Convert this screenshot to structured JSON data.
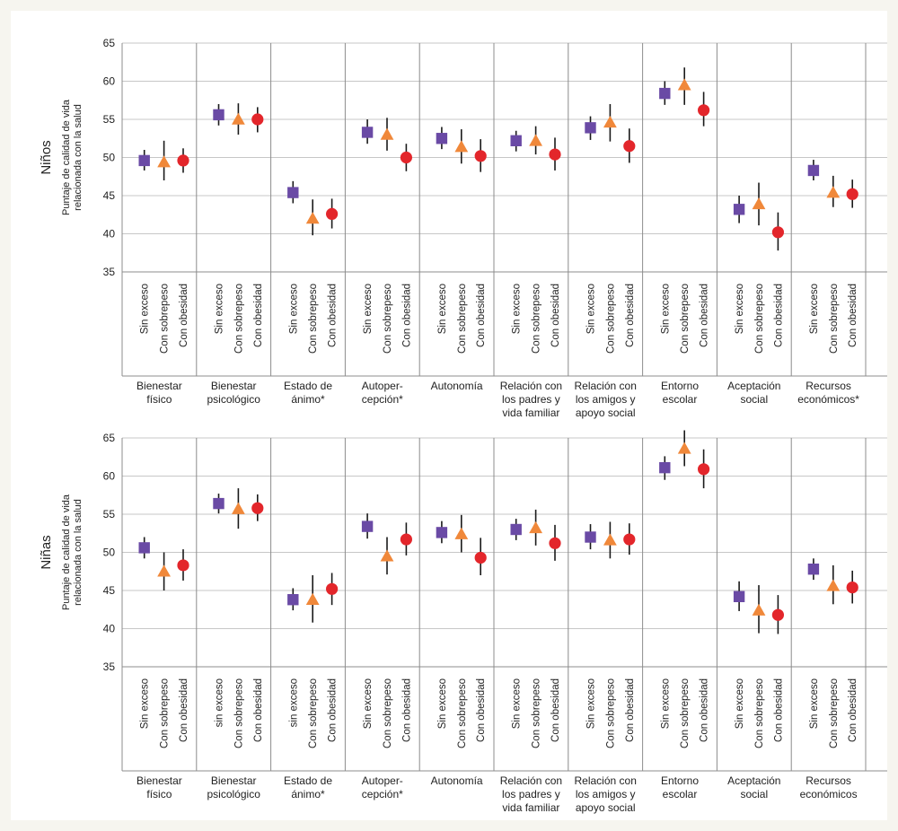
{
  "colors": {
    "sin_exceso": "#6a4aa5",
    "con_sobrepeso": "#f0883a",
    "con_obesidad": "#e3262b"
  },
  "chart_data": [
    {
      "type": "scatter",
      "title": "Niños",
      "ylabel": [
        "Puntaje de calidad de vida",
        "relacionada con la salud"
      ],
      "ylim": [
        35,
        65
      ],
      "yticks": [
        35,
        40,
        45,
        50,
        55,
        60,
        65
      ],
      "grid": true,
      "categories": [
        "Sin exceso",
        "Con sobrepeso",
        "Con obesidad"
      ],
      "groups": [
        {
          "label": [
            "Bienestar",
            "físico"
          ],
          "cats": [
            "Sin exceso",
            "Con sobrepeso",
            "Con obesidad"
          ],
          "values": [
            49.6,
            49.4,
            49.6
          ],
          "low": [
            48.3,
            47.0,
            48.0
          ],
          "high": [
            51.0,
            52.2,
            51.2
          ]
        },
        {
          "label": [
            "Bienestar",
            "psicológico"
          ],
          "cats": [
            "Sin exceso",
            "Con sobrepeso",
            "Con obesidad"
          ],
          "values": [
            55.6,
            55.0,
            55.0
          ],
          "low": [
            54.2,
            53.0,
            53.3
          ],
          "high": [
            57.0,
            57.1,
            56.6
          ]
        },
        {
          "label": [
            "Estado de",
            "ánimo*"
          ],
          "cats": [
            "Sin exceso",
            "Con sobrepeso",
            "Con obesidad"
          ],
          "values": [
            45.4,
            42.0,
            42.6
          ],
          "low": [
            44.0,
            39.8,
            40.7
          ],
          "high": [
            46.9,
            44.5,
            44.6
          ]
        },
        {
          "label": [
            "Autoper-",
            "cepción*"
          ],
          "cats": [
            "Sin exceso",
            "Con sobrepeso",
            "Con obesidad"
          ],
          "values": [
            53.3,
            53.0,
            50.0
          ],
          "low": [
            51.8,
            50.9,
            48.2
          ],
          "high": [
            55.0,
            55.2,
            51.8
          ]
        },
        {
          "label": [
            "Autonomía"
          ],
          "cats": [
            "Sin exceso",
            "Con sobrepeso",
            "Con obesidad"
          ],
          "values": [
            52.5,
            51.4,
            50.2
          ],
          "low": [
            51.1,
            49.2,
            48.1
          ],
          "high": [
            54.0,
            53.7,
            52.4
          ]
        },
        {
          "label": [
            "Relación con",
            "los padres y",
            "vida familiar"
          ],
          "cats": [
            "Sin exceso",
            "Con sobrepeso",
            "Con obesidad"
          ],
          "values": [
            52.2,
            52.2,
            50.4
          ],
          "low": [
            50.8,
            50.4,
            48.3
          ],
          "high": [
            53.5,
            54.1,
            52.6
          ]
        },
        {
          "label": [
            "Relación con",
            "los amigos y",
            "apoyo social"
          ],
          "cats": [
            "Sin exceso",
            "Con sobrepeso",
            "Con obesidad"
          ],
          "values": [
            53.9,
            54.6,
            51.5
          ],
          "low": [
            52.3,
            52.1,
            49.3
          ],
          "high": [
            55.4,
            57.0,
            53.8
          ]
        },
        {
          "label": [
            "Entorno",
            "escolar"
          ],
          "cats": [
            "Sin exceso",
            "Con sobrepeso",
            "Con obesidad"
          ],
          "values": [
            58.4,
            59.5,
            56.2
          ],
          "low": [
            56.9,
            56.9,
            54.1
          ],
          "high": [
            60.0,
            61.8,
            58.6
          ]
        },
        {
          "label": [
            "Aceptación",
            "social"
          ],
          "cats": [
            "Sin exceso",
            "Con sobrepeso",
            "Con obesidad"
          ],
          "values": [
            43.2,
            43.9,
            40.2
          ],
          "low": [
            41.4,
            41.1,
            37.8
          ],
          "high": [
            45.0,
            46.7,
            42.8
          ]
        },
        {
          "label": [
            "Recursos",
            "económicos*"
          ],
          "cats": [
            "Sin exceso",
            "Con sobrepeso",
            "Con obesidad"
          ],
          "values": [
            48.3,
            45.4,
            45.2
          ],
          "low": [
            47.0,
            43.5,
            43.4
          ],
          "high": [
            49.7,
            47.6,
            47.1
          ]
        }
      ]
    },
    {
      "type": "scatter",
      "title": "Niñas",
      "ylabel": [
        "Puntaje de calidad de vida",
        "relacionada con la salud"
      ],
      "ylim": [
        35,
        65
      ],
      "yticks": [
        35,
        40,
        45,
        50,
        55,
        60,
        65
      ],
      "grid": true,
      "categories": [
        "Sin exceso",
        "Con sobrepeso",
        "Con obesidad"
      ],
      "groups": [
        {
          "label": [
            "Bienestar",
            "físico"
          ],
          "cats": [
            "Sin exceso",
            "Con sobrepeso",
            "Con obesidad"
          ],
          "values": [
            50.6,
            47.5,
            48.3
          ],
          "low": [
            49.2,
            45.0,
            46.3
          ],
          "high": [
            52.0,
            50.0,
            50.4
          ]
        },
        {
          "label": [
            "Bienestar",
            "psicológico"
          ],
          "cats": [
            "sin exceso",
            "Con sobrepeso",
            "Con obesidad"
          ],
          "values": [
            56.4,
            55.7,
            55.8
          ],
          "low": [
            55.1,
            53.1,
            54.1
          ],
          "high": [
            57.7,
            58.4,
            57.6
          ]
        },
        {
          "label": [
            "Estado de",
            "ánimo*"
          ],
          "cats": [
            "sin exceso",
            "Con sobrepeso",
            "Con obesidad"
          ],
          "values": [
            43.8,
            43.8,
            45.2
          ],
          "low": [
            42.4,
            40.8,
            43.1
          ],
          "high": [
            45.3,
            47.0,
            47.3
          ]
        },
        {
          "label": [
            "Autoper-",
            "cepción*"
          ],
          "cats": [
            "Sin exceso",
            "Con sobrepeso",
            "Con obesidad"
          ],
          "values": [
            53.4,
            49.5,
            51.7
          ],
          "low": [
            51.8,
            47.1,
            49.6
          ],
          "high": [
            55.1,
            52.0,
            53.9
          ]
        },
        {
          "label": [
            "Autonomía"
          ],
          "cats": [
            "Sin exceso",
            "Con sobrepeso",
            "Con obesidad"
          ],
          "values": [
            52.6,
            52.4,
            49.3
          ],
          "low": [
            51.2,
            50.0,
            47.0
          ],
          "high": [
            54.1,
            54.9,
            51.9
          ]
        },
        {
          "label": [
            "Relación con",
            "los padres y",
            "vida familiar"
          ],
          "cats": [
            "Sin exceso",
            "Con sobrepeso",
            "Con obesidad"
          ],
          "values": [
            53.0,
            53.2,
            51.2
          ],
          "low": [
            51.6,
            50.9,
            48.9
          ],
          "high": [
            54.4,
            55.6,
            53.6
          ]
        },
        {
          "label": [
            "Relación con",
            "los amigos y",
            "apoyo social"
          ],
          "cats": [
            "Sin exceso",
            "Con sobrepeso",
            "Con obesidad"
          ],
          "values": [
            52.0,
            51.6,
            51.7
          ],
          "low": [
            50.4,
            49.2,
            49.7
          ],
          "high": [
            53.7,
            54.0,
            53.8
          ]
        },
        {
          "label": [
            "Entorno",
            "escolar"
          ],
          "cats": [
            "Sin exceso",
            "Con sobrepeso",
            "Con obesidad"
          ],
          "values": [
            61.1,
            63.6,
            60.9
          ],
          "low": [
            59.5,
            61.3,
            58.4
          ],
          "high": [
            62.6,
            66.0,
            63.5
          ]
        },
        {
          "label": [
            "Aceptación",
            "social"
          ],
          "cats": [
            "Sin exceso",
            "Con sobrepeso",
            "Con obesidad"
          ],
          "values": [
            44.2,
            42.4,
            41.8
          ],
          "low": [
            42.3,
            39.4,
            39.3
          ],
          "high": [
            46.2,
            45.7,
            44.4
          ]
        },
        {
          "label": [
            "Recursos",
            "económicos"
          ],
          "cats": [
            "Sin exceso",
            "Con sobrepeso",
            "Con obesidad"
          ],
          "values": [
            47.8,
            45.6,
            45.4
          ],
          "low": [
            46.4,
            43.2,
            43.3
          ],
          "high": [
            49.2,
            48.3,
            47.6
          ]
        }
      ]
    }
  ]
}
